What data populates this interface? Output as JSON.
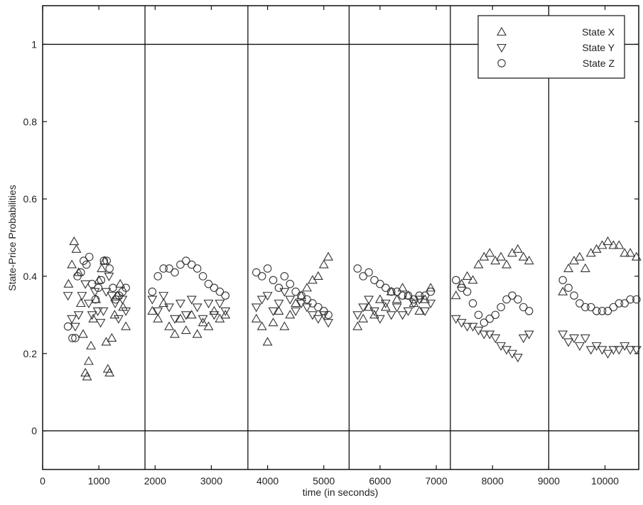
{
  "chart_data": {
    "type": "scatter",
    "title": "",
    "xlabel": "time (in seconds)",
    "ylabel": "State-Price Probabilities",
    "xlim": [
      0,
      10600
    ],
    "ylim": [
      -0.1,
      1.1
    ],
    "xticks": [
      0,
      1000,
      2000,
      3000,
      4000,
      5000,
      6000,
      7000,
      8000,
      9000,
      10000
    ],
    "yticks": [
      0,
      0.2,
      0.4,
      0.6,
      0.8,
      1
    ],
    "ytick_labels": [
      "0",
      "0.2",
      "0.4",
      "0.6",
      "0.8",
      "1"
    ],
    "reference_lines_y": [
      0,
      1
    ],
    "session_breaks_x": [
      1820,
      3650,
      5450,
      7250,
      9000
    ],
    "legend_position": "top-right",
    "grid": false,
    "series": [
      {
        "name": "State X",
        "marker": "triangle-up",
        "points": [
          [
            460,
            0.38
          ],
          [
            520,
            0.43
          ],
          [
            560,
            0.49
          ],
          [
            600,
            0.47
          ],
          [
            640,
            0.41
          ],
          [
            680,
            0.33
          ],
          [
            720,
            0.25
          ],
          [
            760,
            0.15
          ],
          [
            790,
            0.14
          ],
          [
            820,
            0.18
          ],
          [
            860,
            0.22
          ],
          [
            900,
            0.29
          ],
          [
            950,
            0.34
          ],
          [
            1000,
            0.39
          ],
          [
            1050,
            0.42
          ],
          [
            1100,
            0.44
          ],
          [
            1130,
            0.23
          ],
          [
            1160,
            0.16
          ],
          [
            1190,
            0.15
          ],
          [
            1230,
            0.24
          ],
          [
            1280,
            0.3
          ],
          [
            1330,
            0.35
          ],
          [
            1380,
            0.38
          ],
          [
            1430,
            0.32
          ],
          [
            1480,
            0.27
          ],
          [
            1950,
            0.31
          ],
          [
            2050,
            0.29
          ],
          [
            2150,
            0.33
          ],
          [
            2250,
            0.27
          ],
          [
            2350,
            0.25
          ],
          [
            2450,
            0.29
          ],
          [
            2550,
            0.26
          ],
          [
            2650,
            0.3
          ],
          [
            2750,
            0.25
          ],
          [
            2850,
            0.28
          ],
          [
            2950,
            0.27
          ],
          [
            3050,
            0.31
          ],
          [
            3150,
            0.29
          ],
          [
            3250,
            0.3
          ],
          [
            3800,
            0.29
          ],
          [
            3900,
            0.27
          ],
          [
            4000,
            0.23
          ],
          [
            4100,
            0.28
          ],
          [
            4200,
            0.31
          ],
          [
            4300,
            0.27
          ],
          [
            4400,
            0.3
          ],
          [
            4500,
            0.33
          ],
          [
            4600,
            0.35
          ],
          [
            4700,
            0.37
          ],
          [
            4800,
            0.39
          ],
          [
            4900,
            0.4
          ],
          [
            5000,
            0.43
          ],
          [
            5080,
            0.45
          ],
          [
            5600,
            0.27
          ],
          [
            5700,
            0.29
          ],
          [
            5800,
            0.32
          ],
          [
            5900,
            0.3
          ],
          [
            6000,
            0.34
          ],
          [
            6100,
            0.32
          ],
          [
            6200,
            0.36
          ],
          [
            6300,
            0.34
          ],
          [
            6400,
            0.37
          ],
          [
            6500,
            0.35
          ],
          [
            6600,
            0.33
          ],
          [
            6700,
            0.31
          ],
          [
            6800,
            0.34
          ],
          [
            6900,
            0.37
          ],
          [
            7350,
            0.35
          ],
          [
            7450,
            0.38
          ],
          [
            7550,
            0.4
          ],
          [
            7650,
            0.39
          ],
          [
            7750,
            0.43
          ],
          [
            7850,
            0.45
          ],
          [
            7950,
            0.46
          ],
          [
            8050,
            0.44
          ],
          [
            8150,
            0.45
          ],
          [
            8250,
            0.43
          ],
          [
            8350,
            0.46
          ],
          [
            8450,
            0.47
          ],
          [
            8550,
            0.45
          ],
          [
            8650,
            0.44
          ],
          [
            9250,
            0.36
          ],
          [
            9350,
            0.42
          ],
          [
            9450,
            0.44
          ],
          [
            9550,
            0.45
          ],
          [
            9650,
            0.42
          ],
          [
            9750,
            0.46
          ],
          [
            9850,
            0.47
          ],
          [
            9950,
            0.48
          ],
          [
            10050,
            0.49
          ],
          [
            10150,
            0.48
          ],
          [
            10250,
            0.48
          ],
          [
            10350,
            0.46
          ],
          [
            10450,
            0.46
          ],
          [
            10560,
            0.45
          ]
        ]
      },
      {
        "name": "State Y",
        "marker": "triangle-down",
        "points": [
          [
            450,
            0.35
          ],
          [
            520,
            0.29
          ],
          [
            580,
            0.27
          ],
          [
            640,
            0.3
          ],
          [
            700,
            0.35
          ],
          [
            760,
            0.38
          ],
          [
            820,
            0.33
          ],
          [
            880,
            0.3
          ],
          [
            930,
            0.36
          ],
          [
            980,
            0.31
          ],
          [
            1030,
            0.28
          ],
          [
            1080,
            0.31
          ],
          [
            1130,
            0.36
          ],
          [
            1180,
            0.4
          ],
          [
            1230,
            0.35
          ],
          [
            1290,
            0.33
          ],
          [
            1350,
            0.29
          ],
          [
            1420,
            0.34
          ],
          [
            1480,
            0.31
          ],
          [
            1950,
            0.34
          ],
          [
            2050,
            0.31
          ],
          [
            2150,
            0.35
          ],
          [
            2250,
            0.32
          ],
          [
            2350,
            0.29
          ],
          [
            2450,
            0.33
          ],
          [
            2550,
            0.3
          ],
          [
            2650,
            0.34
          ],
          [
            2750,
            0.32
          ],
          [
            2850,
            0.29
          ],
          [
            2950,
            0.33
          ],
          [
            3050,
            0.3
          ],
          [
            3150,
            0.33
          ],
          [
            3250,
            0.31
          ],
          [
            3800,
            0.32
          ],
          [
            3900,
            0.34
          ],
          [
            4000,
            0.35
          ],
          [
            4100,
            0.31
          ],
          [
            4200,
            0.33
          ],
          [
            4300,
            0.36
          ],
          [
            4400,
            0.34
          ],
          [
            4500,
            0.31
          ],
          [
            4600,
            0.33
          ],
          [
            4700,
            0.32
          ],
          [
            4800,
            0.3
          ],
          [
            4900,
            0.29
          ],
          [
            5000,
            0.3
          ],
          [
            5080,
            0.28
          ],
          [
            5600,
            0.3
          ],
          [
            5700,
            0.32
          ],
          [
            5800,
            0.34
          ],
          [
            5900,
            0.31
          ],
          [
            6000,
            0.29
          ],
          [
            6100,
            0.33
          ],
          [
            6200,
            0.3
          ],
          [
            6300,
            0.32
          ],
          [
            6400,
            0.3
          ],
          [
            6500,
            0.31
          ],
          [
            6600,
            0.33
          ],
          [
            6700,
            0.34
          ],
          [
            6800,
            0.31
          ],
          [
            6900,
            0.33
          ],
          [
            7350,
            0.29
          ],
          [
            7450,
            0.28
          ],
          [
            7550,
            0.27
          ],
          [
            7650,
            0.27
          ],
          [
            7750,
            0.26
          ],
          [
            7850,
            0.25
          ],
          [
            7950,
            0.25
          ],
          [
            8050,
            0.24
          ],
          [
            8150,
            0.22
          ],
          [
            8250,
            0.21
          ],
          [
            8350,
            0.2
          ],
          [
            8450,
            0.19
          ],
          [
            8550,
            0.24
          ],
          [
            8650,
            0.25
          ],
          [
            9250,
            0.25
          ],
          [
            9350,
            0.23
          ],
          [
            9450,
            0.24
          ],
          [
            9550,
            0.22
          ],
          [
            9650,
            0.24
          ],
          [
            9750,
            0.21
          ],
          [
            9850,
            0.22
          ],
          [
            9950,
            0.21
          ],
          [
            10050,
            0.2
          ],
          [
            10150,
            0.21
          ],
          [
            10250,
            0.21
          ],
          [
            10350,
            0.22
          ],
          [
            10450,
            0.21
          ],
          [
            10560,
            0.21
          ]
        ]
      },
      {
        "name": "State Z",
        "marker": "circle",
        "points": [
          [
            450,
            0.27
          ],
          [
            530,
            0.24
          ],
          [
            580,
            0.24
          ],
          [
            620,
            0.4
          ],
          [
            680,
            0.41
          ],
          [
            730,
            0.44
          ],
          [
            780,
            0.43
          ],
          [
            830,
            0.45
          ],
          [
            880,
            0.38
          ],
          [
            940,
            0.34
          ],
          [
            990,
            0.37
          ],
          [
            1040,
            0.39
          ],
          [
            1090,
            0.44
          ],
          [
            1140,
            0.44
          ],
          [
            1190,
            0.42
          ],
          [
            1250,
            0.37
          ],
          [
            1300,
            0.34
          ],
          [
            1360,
            0.35
          ],
          [
            1420,
            0.36
          ],
          [
            1480,
            0.37
          ],
          [
            1950,
            0.36
          ],
          [
            2050,
            0.4
          ],
          [
            2150,
            0.42
          ],
          [
            2250,
            0.42
          ],
          [
            2350,
            0.41
          ],
          [
            2450,
            0.43
          ],
          [
            2550,
            0.44
          ],
          [
            2650,
            0.43
          ],
          [
            2750,
            0.42
          ],
          [
            2850,
            0.4
          ],
          [
            2950,
            0.38
          ],
          [
            3050,
            0.37
          ],
          [
            3150,
            0.36
          ],
          [
            3250,
            0.35
          ],
          [
            3800,
            0.41
          ],
          [
            3900,
            0.4
          ],
          [
            4000,
            0.42
          ],
          [
            4100,
            0.39
          ],
          [
            4200,
            0.37
          ],
          [
            4300,
            0.4
          ],
          [
            4400,
            0.38
          ],
          [
            4500,
            0.36
          ],
          [
            4600,
            0.35
          ],
          [
            4700,
            0.34
          ],
          [
            4800,
            0.33
          ],
          [
            4900,
            0.32
          ],
          [
            5000,
            0.31
          ],
          [
            5080,
            0.3
          ],
          [
            5600,
            0.42
          ],
          [
            5700,
            0.4
          ],
          [
            5800,
            0.41
          ],
          [
            5900,
            0.39
          ],
          [
            6000,
            0.38
          ],
          [
            6100,
            0.37
          ],
          [
            6200,
            0.36
          ],
          [
            6300,
            0.36
          ],
          [
            6400,
            0.35
          ],
          [
            6500,
            0.35
          ],
          [
            6600,
            0.34
          ],
          [
            6700,
            0.35
          ],
          [
            6800,
            0.35
          ],
          [
            6900,
            0.36
          ],
          [
            7350,
            0.39
          ],
          [
            7450,
            0.37
          ],
          [
            7550,
            0.36
          ],
          [
            7650,
            0.33
          ],
          [
            7750,
            0.3
          ],
          [
            7850,
            0.28
          ],
          [
            7950,
            0.29
          ],
          [
            8050,
            0.3
          ],
          [
            8150,
            0.32
          ],
          [
            8250,
            0.34
          ],
          [
            8350,
            0.35
          ],
          [
            8450,
            0.34
          ],
          [
            8550,
            0.32
          ],
          [
            8650,
            0.31
          ],
          [
            9250,
            0.39
          ],
          [
            9350,
            0.37
          ],
          [
            9450,
            0.35
          ],
          [
            9550,
            0.33
          ],
          [
            9650,
            0.32
          ],
          [
            9750,
            0.32
          ],
          [
            9850,
            0.31
          ],
          [
            9950,
            0.31
          ],
          [
            10050,
            0.31
          ],
          [
            10150,
            0.32
          ],
          [
            10250,
            0.33
          ],
          [
            10350,
            0.33
          ],
          [
            10450,
            0.34
          ],
          [
            10560,
            0.34
          ]
        ]
      }
    ]
  }
}
